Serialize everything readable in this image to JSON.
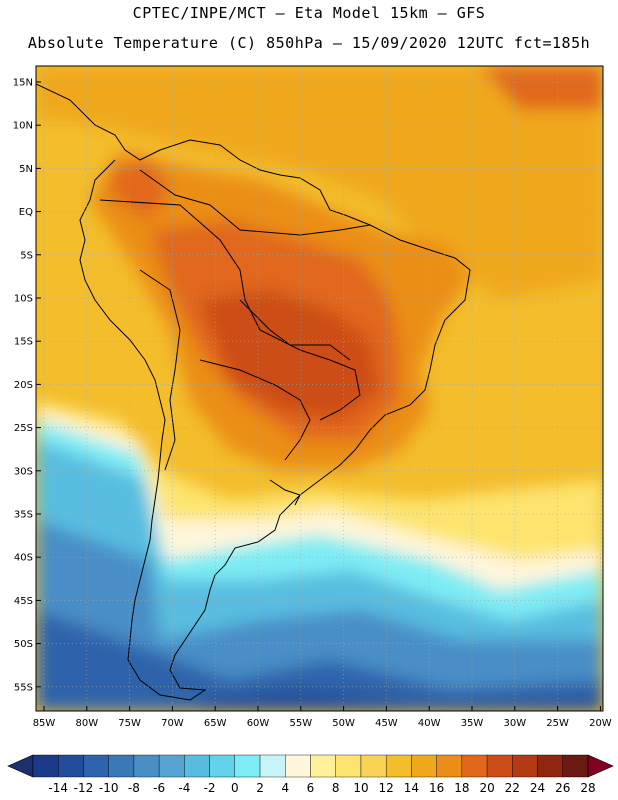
{
  "header": {
    "line1": "CPTEC/INPE/MCT –  Eta Model 15km – GFS",
    "line2": "Absolute Temperature (C) 850hPa – 15/09/2020 12UTC fct=185h"
  },
  "map": {
    "lat_labels": [
      "15N",
      "10N",
      "5N",
      "EQ",
      "5S",
      "10S",
      "15S",
      "20S",
      "25S",
      "30S",
      "35S",
      "40S",
      "45S",
      "50S",
      "55S"
    ],
    "lon_labels": [
      "85W",
      "80W",
      "75W",
      "70W",
      "65W",
      "60W",
      "55W",
      "50W",
      "45W",
      "40W",
      "35W",
      "30W",
      "25W",
      "20W"
    ]
  },
  "colorbar": {
    "labels": [
      "-14",
      "-12",
      "-10",
      "-8",
      "-6",
      "-4",
      "-2",
      "0",
      "2",
      "4",
      "6",
      "8",
      "10",
      "12",
      "14",
      "16",
      "18",
      "20",
      "22",
      "24",
      "26",
      "28"
    ],
    "colors": [
      "#1b3a8a",
      "#244c9c",
      "#2f63ab",
      "#3b78b8",
      "#4a8ec6",
      "#55a4d4",
      "#59bde0",
      "#62d3e8",
      "#7eecf4",
      "#c8f4f8",
      "#fff6dc",
      "#fff09a",
      "#fde46e",
      "#f9d356",
      "#f3bd2c",
      "#f0a81c",
      "#eb8e18",
      "#e1681a",
      "#cd4d18",
      "#b33a14",
      "#8f2610",
      "#6a1a12"
    ],
    "under_color": "#1e2f6e",
    "over_color": "#800020"
  }
}
